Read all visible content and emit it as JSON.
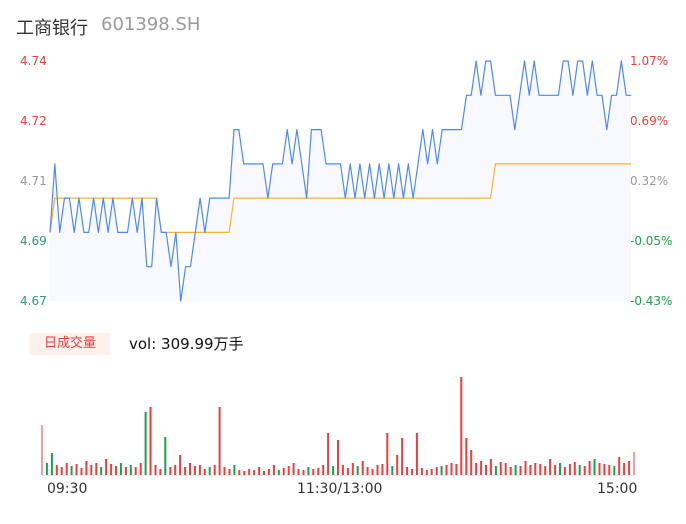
{
  "header": {
    "name": "工商银行",
    "code": "601398.SH"
  },
  "colors": {
    "price_line": "#4d88ff",
    "avg_line": "#f5b52d",
    "area_fill": "#f7f9fe",
    "up": "#f23b3b",
    "down": "#16a34a",
    "neutral": "#999999"
  },
  "volume_header": {
    "tab_label": "日成交量",
    "vol_text": "vol: 309.99万手"
  },
  "chart_data": [
    {
      "type": "line",
      "ylim": [
        4.67,
        4.74
      ],
      "y_ticks_left": [
        "4.74",
        "4.72",
        "4.71",
        "4.69",
        "4.67"
      ],
      "y_ticks_right": [
        "1.07%",
        "0.69%",
        "0.32%",
        "-0.05%",
        "-0.43%"
      ],
      "x_ticks": [
        "09:30",
        "11:30/13:00",
        "15:00"
      ],
      "series": [
        {
          "key": "price",
          "values": [
            4.69,
            4.71,
            4.69,
            4.7,
            4.7,
            4.69,
            4.7,
            4.69,
            4.69,
            4.7,
            4.69,
            4.7,
            4.69,
            4.7,
            4.69,
            4.69,
            4.69,
            4.7,
            4.69,
            4.7,
            4.68,
            4.68,
            4.7,
            4.69,
            4.69,
            4.68,
            4.69,
            4.67,
            4.68,
            4.68,
            4.69,
            4.7,
            4.69,
            4.7,
            4.7,
            4.7,
            4.7,
            4.7,
            4.72,
            4.72,
            4.71,
            4.71,
            4.71,
            4.71,
            4.71,
            4.7,
            4.71,
            4.71,
            4.71,
            4.72,
            4.71,
            4.72,
            4.71,
            4.7,
            4.72,
            4.72,
            4.72,
            4.71,
            4.71,
            4.71,
            4.71,
            4.7,
            4.71,
            4.7,
            4.71,
            4.7,
            4.71,
            4.7,
            4.71,
            4.7,
            4.71,
            4.7,
            4.71,
            4.7,
            4.71,
            4.7,
            4.71,
            4.72,
            4.71,
            4.72,
            4.71,
            4.72,
            4.72,
            4.72,
            4.72,
            4.72,
            4.73,
            4.73,
            4.74,
            4.73,
            4.74,
            4.74,
            4.73,
            4.73,
            4.73,
            4.73,
            4.72,
            4.73,
            4.74,
            4.73,
            4.74,
            4.73,
            4.73,
            4.73,
            4.73,
            4.73,
            4.74,
            4.74,
            4.73,
            4.74,
            4.74,
            4.73,
            4.74,
            4.73,
            4.73,
            4.72,
            4.73,
            4.73,
            4.74,
            4.73,
            4.73
          ]
        },
        {
          "key": "average",
          "values": [
            4.69,
            4.7,
            4.7,
            4.7,
            4.7,
            4.7,
            4.7,
            4.7,
            4.7,
            4.7,
            4.7,
            4.7,
            4.7,
            4.7,
            4.7,
            4.7,
            4.7,
            4.7,
            4.7,
            4.7,
            4.7,
            4.7,
            4.7,
            4.69,
            4.69,
            4.69,
            4.69,
            4.69,
            4.69,
            4.69,
            4.69,
            4.69,
            4.69,
            4.69,
            4.69,
            4.69,
            4.69,
            4.69,
            4.7,
            4.7,
            4.7,
            4.7,
            4.7,
            4.7,
            4.7,
            4.7,
            4.7,
            4.7,
            4.7,
            4.7,
            4.7,
            4.7,
            4.7,
            4.7,
            4.7,
            4.7,
            4.7,
            4.7,
            4.7,
            4.7,
            4.7,
            4.7,
            4.7,
            4.7,
            4.7,
            4.7,
            4.7,
            4.7,
            4.7,
            4.7,
            4.7,
            4.7,
            4.7,
            4.7,
            4.7,
            4.7,
            4.7,
            4.7,
            4.7,
            4.7,
            4.7,
            4.7,
            4.7,
            4.7,
            4.7,
            4.7,
            4.7,
            4.7,
            4.7,
            4.7,
            4.7,
            4.7,
            4.71,
            4.71,
            4.71,
            4.71,
            4.71,
            4.71,
            4.71,
            4.71,
            4.71,
            4.71,
            4.71,
            4.71,
            4.71,
            4.71,
            4.71,
            4.71,
            4.71,
            4.71,
            4.71,
            4.71,
            4.71,
            4.71,
            4.71,
            4.71,
            4.71,
            4.71,
            4.71,
            4.71,
            4.71
          ]
        }
      ]
    },
    {
      "type": "bar",
      "values": [
        50,
        12,
        22,
        10,
        8,
        12,
        9,
        11,
        7,
        14,
        10,
        12,
        8,
        16,
        11,
        9,
        12,
        8,
        10,
        8,
        12,
        63,
        68,
        10,
        6,
        38,
        8,
        10,
        20,
        8,
        12,
        9,
        10,
        6,
        8,
        10,
        68,
        8,
        6,
        10,
        5,
        4,
        6,
        5,
        8,
        4,
        6,
        10,
        5,
        7,
        9,
        12,
        6,
        5,
        8,
        6,
        7,
        10,
        42,
        9,
        35,
        10,
        7,
        12,
        9,
        14,
        8,
        6,
        10,
        11,
        42,
        9,
        20,
        37,
        8,
        6,
        42,
        7,
        5,
        6,
        8,
        9,
        10,
        12,
        11,
        98,
        37,
        25,
        12,
        14,
        10,
        16,
        9,
        13,
        12,
        8,
        10,
        9,
        14,
        10,
        12,
        11,
        9,
        16,
        10,
        12,
        8,
        11,
        13,
        10,
        9,
        14,
        16,
        12,
        11,
        10,
        9,
        18,
        12,
        14,
        23
      ],
      "directions": "rggrrrgrrrrrgrrrgrgrrgrrrgrrrrrrrrgrrrrgrrrrrrrrgrrrrrgrrrrgrrrrgrrrrrrgrrrrrrrrrgrrrrrrrrrrgrrrgrrrrrrrrgrrrgrrgrrrgrr"
    }
  ]
}
